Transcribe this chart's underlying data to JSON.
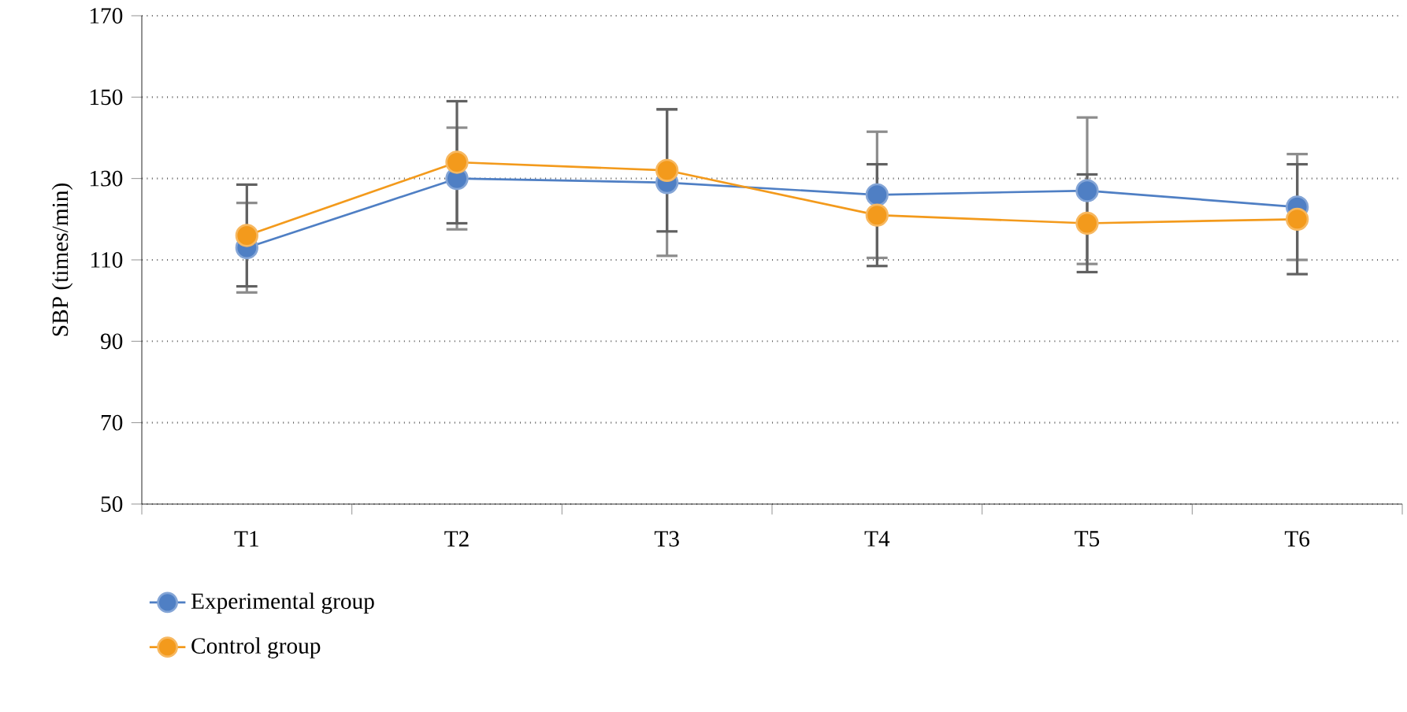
{
  "chart_data": {
    "type": "line",
    "ylabel": "SBP (times/min)",
    "categories": [
      "T1",
      "T2",
      "T3",
      "T4",
      "T5",
      "T6"
    ],
    "series": [
      {
        "name": "Experimental group",
        "color": "#4f7fc4",
        "values": [
          113,
          130,
          129,
          126,
          127,
          123
        ],
        "errors": [
          11,
          12.5,
          18,
          15.5,
          18,
          13
        ]
      },
      {
        "name": "Control group",
        "color": "#f39a1c",
        "values": [
          116,
          134,
          132,
          121,
          119,
          120
        ],
        "errors": [
          12.5,
          15,
          15,
          12.5,
          12,
          13.5
        ]
      }
    ],
    "ylim": [
      50,
      170
    ],
    "yticks": [
      50,
      70,
      90,
      110,
      130,
      150,
      170
    ],
    "grid": "y",
    "legend": "bottom",
    "marker": "circle"
  }
}
